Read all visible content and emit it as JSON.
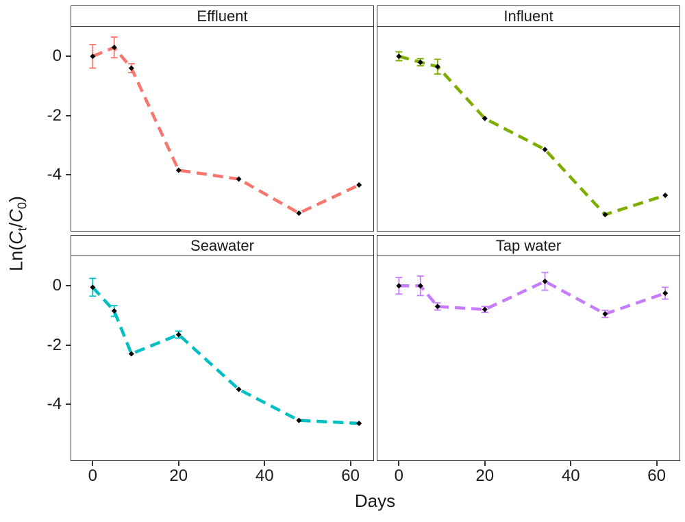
{
  "figure": {
    "xlabel": "Days",
    "ylabel": {
      "pre": "Ln(",
      "sym1": "C",
      "sub1": "t",
      "slash": "/",
      "sym2": "C",
      "sub2": "0",
      "post": ")"
    }
  },
  "chart_data": [
    {
      "type": "line",
      "title": "Effluent",
      "color": "#F8766D",
      "line_style": "dashed",
      "marker": "black-diamond",
      "x": [
        0,
        5,
        9,
        20,
        34,
        48,
        62
      ],
      "y": [
        0.0,
        0.3,
        -0.4,
        -3.85,
        -4.15,
        -5.3,
        -4.35
      ],
      "yerr": [
        0.4,
        0.35,
        0.15,
        0,
        0,
        0,
        0
      ],
      "xlim": [
        -5,
        65
      ],
      "ylim": [
        -5.9,
        1.0
      ],
      "xticks": [
        0,
        20,
        40,
        60
      ],
      "yticks": [
        0,
        -2,
        -4
      ],
      "grid": false
    },
    {
      "type": "line",
      "title": "Influent",
      "color": "#7CAE00",
      "line_style": "dashed",
      "marker": "black-diamond",
      "x": [
        0,
        5,
        9,
        20,
        34,
        48,
        62
      ],
      "y": [
        0.0,
        -0.2,
        -0.35,
        -2.1,
        -3.15,
        -5.35,
        -4.7
      ],
      "yerr": [
        0.15,
        0.12,
        0.25,
        0,
        0,
        0,
        0
      ],
      "xlim": [
        -5,
        65
      ],
      "ylim": [
        -5.9,
        1.0
      ],
      "xticks": [
        0,
        20,
        40,
        60
      ],
      "yticks": [
        0,
        -2,
        -4
      ],
      "grid": false
    },
    {
      "type": "line",
      "title": "Seawater",
      "color": "#00BFC4",
      "line_style": "dashed",
      "marker": "black-diamond",
      "x": [
        0,
        5,
        9,
        20,
        34,
        48,
        62
      ],
      "y": [
        -0.05,
        -0.85,
        -2.3,
        -1.65,
        -3.5,
        -4.55,
        -4.65
      ],
      "yerr": [
        0.3,
        0.18,
        0,
        0.12,
        0,
        0,
        0
      ],
      "xlim": [
        -5,
        65
      ],
      "ylim": [
        -5.9,
        1.0
      ],
      "xticks": [
        0,
        20,
        40,
        60
      ],
      "yticks": [
        0,
        -2,
        -4
      ],
      "grid": false
    },
    {
      "type": "line",
      "title": "Tap water",
      "color": "#C77CFF",
      "line_style": "dashed",
      "marker": "black-diamond",
      "x": [
        0,
        5,
        9,
        20,
        34,
        48,
        62
      ],
      "y": [
        0.0,
        0.0,
        -0.7,
        -0.8,
        0.15,
        -0.95,
        -0.25
      ],
      "yerr": [
        0.28,
        0.33,
        0.12,
        0.1,
        0.3,
        0.12,
        0.2
      ],
      "xlim": [
        -5,
        65
      ],
      "ylim": [
        -5.9,
        1.0
      ],
      "xticks": [
        0,
        20,
        40,
        60
      ],
      "yticks": [
        0,
        -2,
        -4
      ],
      "grid": false
    }
  ]
}
